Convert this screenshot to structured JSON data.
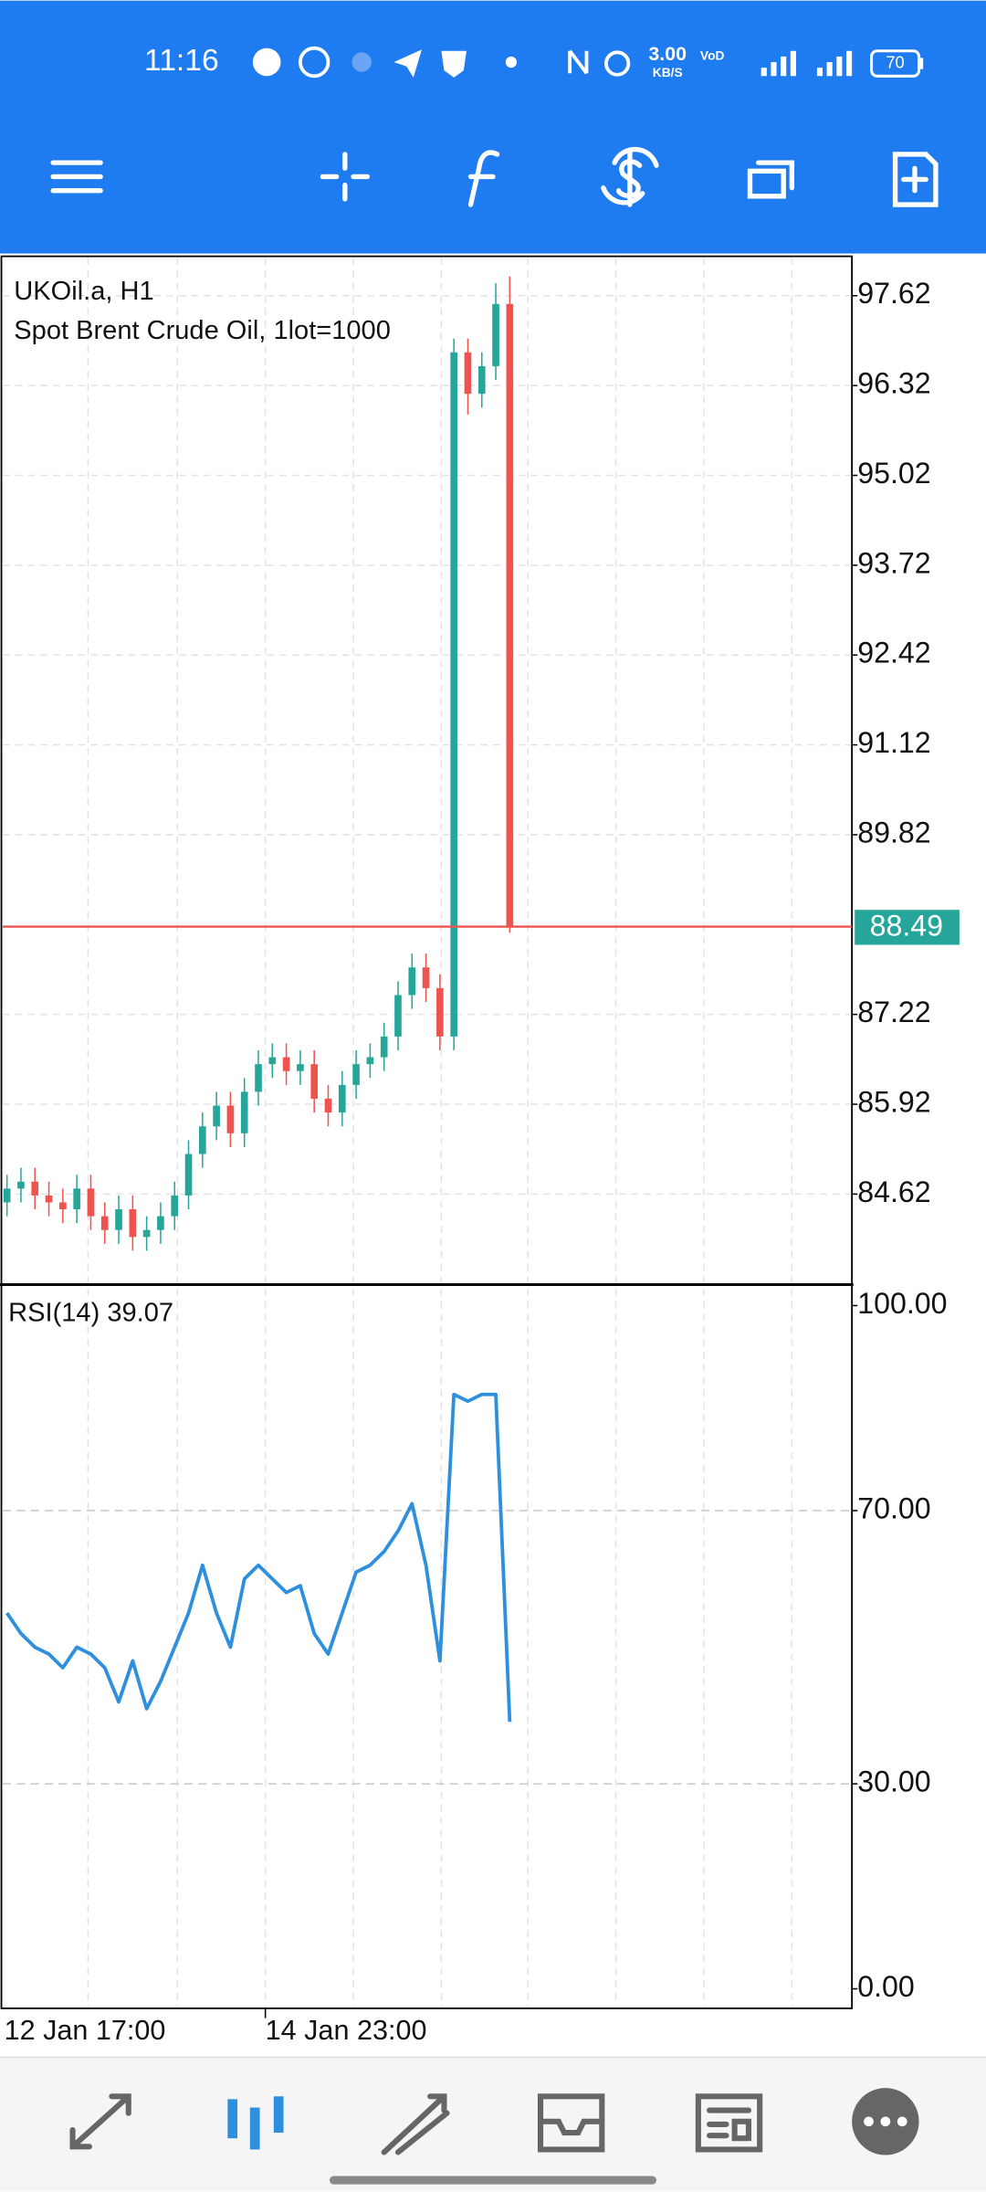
{
  "status_bar": {
    "time": "11:16",
    "speed": "3.00",
    "speed_unit": "KB/S",
    "battery": "70"
  },
  "chart": {
    "type": "candlestick",
    "symbol": "UKOil.a, H1",
    "description": "Spot Brent Crude Oil, 1lot=1000",
    "x_labels": [
      "12 Jan 17:00",
      "14 Jan 23:00"
    ],
    "ylim": [
      83.31,
      98.19
    ],
    "yticks": [
      97.62,
      96.32,
      95.02,
      93.72,
      92.42,
      91.12,
      89.82,
      87.22,
      85.92,
      84.62
    ],
    "current_price": 88.49,
    "up_color": "#26a69a",
    "down_color": "#ef5350",
    "open": [
      84.5,
      84.7,
      84.8,
      84.6,
      84.5,
      84.4,
      84.7,
      84.3,
      84.1,
      84.4,
      84.0,
      84.1,
      84.3,
      84.6,
      85.2,
      85.6,
      85.9,
      85.5,
      86.1,
      86.5,
      86.6,
      86.4,
      86.5,
      86.0,
      85.8,
      86.2,
      86.5,
      86.6,
      86.9,
      87.5,
      87.9,
      87.6,
      86.9,
      96.8,
      96.2,
      96.6,
      97.5
    ],
    "high": [
      84.9,
      85.0,
      85.0,
      84.8,
      84.7,
      84.9,
      84.9,
      84.5,
      84.6,
      84.6,
      84.3,
      84.5,
      84.8,
      85.4,
      85.8,
      86.1,
      86.1,
      86.3,
      86.7,
      86.8,
      86.8,
      86.7,
      86.7,
      86.2,
      86.4,
      86.7,
      86.8,
      87.1,
      87.7,
      88.1,
      88.1,
      87.8,
      97.0,
      97.0,
      96.8,
      97.8,
      97.9
    ],
    "low": [
      84.3,
      84.5,
      84.4,
      84.3,
      84.2,
      84.2,
      84.1,
      83.9,
      83.9,
      83.8,
      83.8,
      83.9,
      84.1,
      84.4,
      85.0,
      85.4,
      85.3,
      85.3,
      85.9,
      86.3,
      86.2,
      86.2,
      85.8,
      85.6,
      85.6,
      86.0,
      86.3,
      86.4,
      86.7,
      87.3,
      87.4,
      86.7,
      86.7,
      95.9,
      96.0,
      96.4,
      88.4
    ],
    "close": [
      84.7,
      84.8,
      84.6,
      84.5,
      84.4,
      84.7,
      84.3,
      84.1,
      84.4,
      84.0,
      84.1,
      84.3,
      84.6,
      85.2,
      85.6,
      85.9,
      85.5,
      86.1,
      86.5,
      86.6,
      86.4,
      86.5,
      86.0,
      85.8,
      86.2,
      86.5,
      86.6,
      86.9,
      87.5,
      87.9,
      87.6,
      86.9,
      96.8,
      96.2,
      96.6,
      97.5,
      88.49
    ]
  },
  "indicator": {
    "type": "line",
    "label": "RSI(14) 39.07",
    "color": "#2d8fdd",
    "ylim": [
      -2.86,
      103.07
    ],
    "yticks": [
      {
        "value": 100,
        "label": "100.00"
      },
      {
        "value": 70,
        "label": "70.00"
      },
      {
        "value": 30,
        "label": "30.00"
      },
      {
        "value": 0,
        "label": "0.00"
      }
    ],
    "levels": [
      70,
      30
    ],
    "values": [
      55,
      52,
      50,
      49,
      47,
      50,
      49,
      47,
      42,
      48,
      41,
      45,
      50,
      55,
      62,
      55,
      50,
      60,
      62,
      60,
      58,
      59,
      52,
      49,
      55,
      61,
      62,
      64,
      67,
      71,
      62,
      48,
      87,
      86,
      87,
      87,
      39.07
    ]
  }
}
